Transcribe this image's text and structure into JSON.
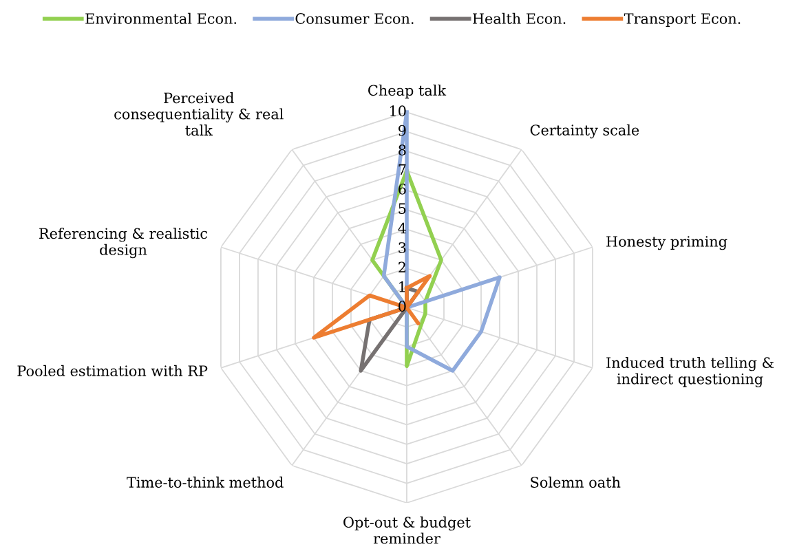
{
  "chart_data": {
    "type": "radar",
    "categories": [
      "Cheap talk",
      "Certainty scale",
      "Honesty priming",
      "Induced truth telling &\nindirect questioning",
      "Solemn oath",
      "Opt-out & budget\nreminder",
      "Time-to-think method",
      "Pooled estimation with RP",
      "Referencing & realistic\ndesign",
      "Perceived\nconsequentiality & real\ntalk"
    ],
    "series": [
      {
        "name": "Environmental Econ.",
        "color": "#92d050",
        "values": [
          7,
          3,
          1,
          1,
          1.2,
          3,
          0,
          0,
          0,
          3
        ]
      },
      {
        "name": "Consumer Econ.",
        "color": "#8faadc",
        "values": [
          10,
          0,
          5,
          4,
          4,
          2,
          0,
          0,
          0,
          2
        ]
      },
      {
        "name": "Health Econ.",
        "color": "#767171",
        "values": [
          1,
          1,
          0,
          0,
          0,
          0,
          4,
          2,
          0,
          0
        ]
      },
      {
        "name": "Transport Econ.",
        "color": "#ed7d31",
        "values": [
          1,
          2,
          0,
          0,
          1,
          0,
          0,
          5,
          2,
          0
        ]
      }
    ],
    "ylim": [
      0,
      10
    ],
    "yticks": [
      0,
      1,
      2,
      3,
      4,
      5,
      6,
      7,
      8,
      9,
      10
    ],
    "grid": true,
    "legend": "top",
    "marker": "none",
    "line_style": "solid"
  }
}
